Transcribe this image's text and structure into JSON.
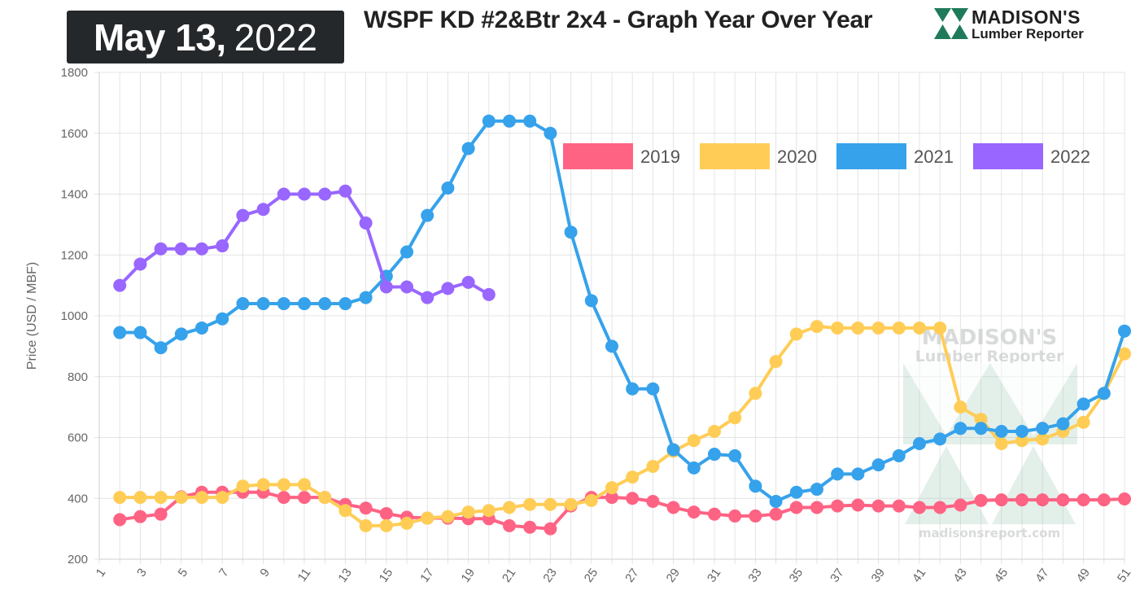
{
  "header": {
    "date_main": "May 13,",
    "date_year": "2022",
    "title": "WSPF KD #2&Btr 2x4 - Graph Year Over Year"
  },
  "logo": {
    "name": "MADISON'S",
    "sub": "Lumber Reporter"
  },
  "watermark": {
    "name": "MADISON'S",
    "sub": "Lumber Reporter",
    "url": "madisonsreport.com"
  },
  "chart_data": {
    "type": "line",
    "title": "WSPF KD #2&Btr 2x4 - Graph Year Over Year",
    "xlabel": "",
    "ylabel": "Price (USD / MBF)",
    "xlim": [
      1,
      51
    ],
    "ylim": [
      200,
      1800
    ],
    "y_ticks": [
      200,
      400,
      600,
      800,
      1000,
      1200,
      1400,
      1600,
      1800
    ],
    "x_ticks": [
      1,
      3,
      5,
      7,
      9,
      11,
      13,
      15,
      17,
      19,
      21,
      23,
      25,
      27,
      29,
      31,
      33,
      35,
      37,
      39,
      41,
      43,
      45,
      47,
      49,
      51
    ],
    "grid": true,
    "legend_position": "top-right",
    "series": [
      {
        "name": "2019",
        "color": "#ff6384",
        "x": [
          2,
          3,
          4,
          5,
          6,
          7,
          8,
          9,
          10,
          11,
          12,
          13,
          14,
          15,
          16,
          17,
          18,
          19,
          20,
          21,
          22,
          23,
          24,
          25,
          26,
          27,
          28,
          29,
          30,
          31,
          32,
          33,
          34,
          35,
          36,
          37,
          38,
          39,
          40,
          41,
          42,
          43,
          44,
          45,
          46,
          47,
          48,
          49,
          50,
          51
        ],
        "values": [
          330,
          340,
          348,
          405,
          420,
          420,
          420,
          420,
          403,
          403,
          403,
          380,
          368,
          350,
          338,
          335,
          335,
          333,
          333,
          310,
          305,
          300,
          375,
          403,
          403,
          400,
          390,
          370,
          355,
          348,
          342,
          342,
          348,
          370,
          370,
          375,
          378,
          375,
          375,
          370,
          370,
          378,
          393,
          395,
          395,
          395,
          395,
          395,
          395,
          398
        ]
      },
      {
        "name": "2020",
        "color": "#ffcd56",
        "x": [
          2,
          3,
          4,
          5,
          6,
          7,
          8,
          9,
          10,
          11,
          12,
          13,
          14,
          15,
          16,
          17,
          18,
          19,
          20,
          21,
          22,
          23,
          24,
          25,
          26,
          27,
          28,
          29,
          30,
          31,
          32,
          33,
          34,
          35,
          36,
          37,
          38,
          39,
          40,
          41,
          42,
          43,
          44,
          45,
          46,
          47,
          48,
          49,
          50,
          51
        ],
        "values": [
          403,
          403,
          403,
          403,
          403,
          403,
          440,
          445,
          445,
          445,
          403,
          360,
          310,
          310,
          318,
          335,
          340,
          355,
          360,
          370,
          380,
          380,
          380,
          393,
          435,
          470,
          505,
          555,
          590,
          620,
          665,
          745,
          850,
          940,
          965,
          960,
          960,
          960,
          960,
          960,
          960,
          700,
          660,
          580,
          590,
          595,
          620,
          650,
          745,
          875
        ]
      },
      {
        "name": "2021",
        "color": "#36a2eb",
        "x": [
          2,
          3,
          4,
          5,
          6,
          7,
          8,
          9,
          10,
          11,
          12,
          13,
          14,
          15,
          16,
          17,
          18,
          19,
          20,
          21,
          22,
          23,
          24,
          25,
          26,
          27,
          28,
          29,
          30,
          31,
          32,
          33,
          34,
          35,
          36,
          37,
          38,
          39,
          40,
          41,
          42,
          43,
          44,
          45,
          46,
          47,
          48,
          49,
          50,
          51
        ],
        "values": [
          945,
          945,
          895,
          940,
          960,
          990,
          1040,
          1040,
          1040,
          1040,
          1040,
          1040,
          1060,
          1130,
          1210,
          1330,
          1420,
          1550,
          1640,
          1640,
          1640,
          1600,
          1275,
          1050,
          900,
          760,
          760,
          560,
          500,
          545,
          540,
          440,
          390,
          420,
          430,
          480,
          480,
          510,
          540,
          580,
          595,
          630,
          630,
          620,
          620,
          630,
          645,
          710,
          745,
          950
        ]
      },
      {
        "name": "2022",
        "color": "#9966ff",
        "x": [
          2,
          3,
          4,
          5,
          6,
          7,
          8,
          9,
          10,
          11,
          12,
          13,
          14,
          15,
          16,
          17,
          18,
          19,
          20
        ],
        "values": [
          1100,
          1170,
          1220,
          1220,
          1220,
          1230,
          1330,
          1350,
          1400,
          1400,
          1400,
          1410,
          1305,
          1095,
          1095,
          1060,
          1090,
          1110,
          1070
        ]
      }
    ]
  }
}
